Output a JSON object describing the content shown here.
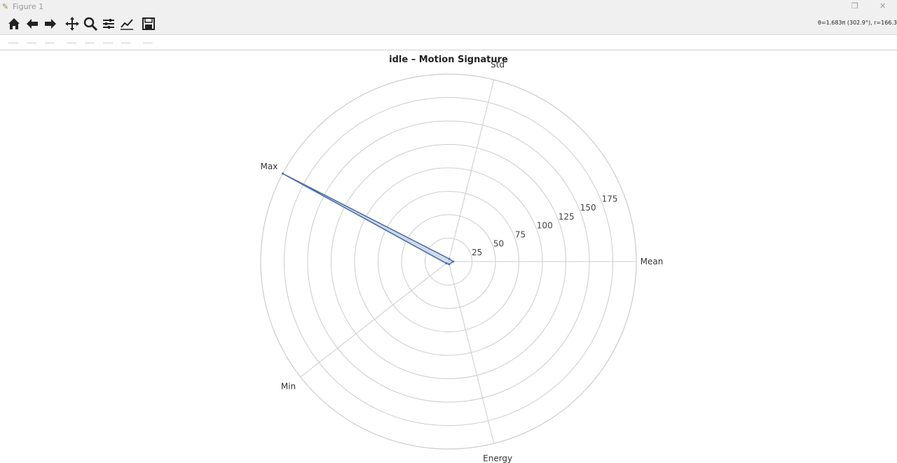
{
  "window": {
    "title": "Figure 1",
    "restore_glyph": "❐",
    "close_glyph": "✕"
  },
  "toolbar": {
    "buttons": [
      {
        "name": "home-icon"
      },
      {
        "name": "back-icon"
      },
      {
        "name": "forward-icon"
      },
      {
        "name": "pan-icon"
      },
      {
        "name": "zoom-icon"
      },
      {
        "name": "subplots-icon"
      },
      {
        "name": "customize-icon"
      },
      {
        "name": "save-icon"
      }
    ],
    "coords_text": "θ=1.683π (302.9°), r=166.3"
  },
  "chart_data": {
    "type": "radar",
    "title": "idle – Motion Signature",
    "categories": [
      "Mean",
      "Std",
      "Max",
      "Min",
      "Energy"
    ],
    "category_angles_deg": [
      0,
      76,
      152,
      218,
      284
    ],
    "series": [
      {
        "values": [
          5,
          3,
          200,
          3,
          3
        ]
      }
    ],
    "rlim": [
      0,
      200
    ],
    "r_ticks": [
      25,
      50,
      75,
      100,
      125,
      150,
      175
    ],
    "r_tick_labels": [
      "25",
      "50",
      "75",
      "100",
      "125",
      "150",
      "175"
    ],
    "grid": true,
    "colors": {
      "line": "#4a6fa5",
      "fill": "#c8d6ec",
      "grid": "#cccccc"
    }
  }
}
